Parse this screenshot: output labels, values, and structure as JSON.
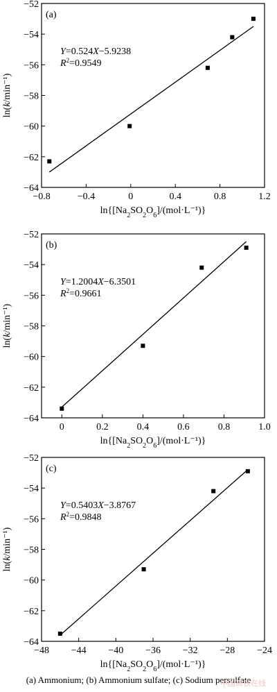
{
  "chart_data": [
    {
      "type": "scatter",
      "panel_label": "(a)",
      "y_label": "ln(k/min⁻¹)",
      "x_label": "ln{[Na2SO2O6]/(mol·L⁻¹)}",
      "equation": "Y=0.524X−5.9238",
      "r_squared": "R2=0.9549",
      "xlim": [
        -0.8,
        1.2
      ],
      "ylim": [
        -64,
        -52
      ],
      "x_ticks": [
        "-0.8",
        "-0.4",
        "0",
        "0.4",
        "0.8",
        "1.2"
      ],
      "y_ticks": [
        "-52",
        "-54",
        "-56",
        "-58",
        "-60",
        "-62",
        "-64"
      ],
      "x_tick_values": [
        -0.8,
        -0.4,
        0,
        0.4,
        0.8,
        1.2
      ],
      "y_tick_values": [
        -52,
        -54,
        -56,
        -58,
        -60,
        -62,
        -64
      ],
      "points": [
        {
          "x": -0.73,
          "y": -62.3
        },
        {
          "x": -0.01,
          "y": -60.0
        },
        {
          "x": 0.69,
          "y": -56.2
        },
        {
          "x": 0.91,
          "y": -54.2
        },
        {
          "x": 1.1,
          "y": -53.0
        }
      ],
      "fit_line": [
        {
          "x": -0.73,
          "y": -63.0
        },
        {
          "x": 1.1,
          "y": -53.5
        }
      ],
      "grid": false,
      "legend": "none"
    },
    {
      "type": "scatter",
      "panel_label": "(b)",
      "y_label": "ln(k/min⁻¹)",
      "x_label": "ln{[Na2SO2O6]/(mol·L⁻¹)}",
      "equation": "Y=1.2004X−6.3501",
      "r_squared": "R2=0.9661",
      "xlim": [
        -0.1,
        1.0
      ],
      "ylim": [
        -64,
        -52
      ],
      "x_ticks": [
        "0",
        "0.2",
        "0.4",
        "0.6",
        "0.8",
        "1.0"
      ],
      "y_ticks": [
        "-52",
        "-54",
        "-56",
        "-58",
        "-60",
        "-62",
        "-64"
      ],
      "x_tick_values": [
        0,
        0.2,
        0.4,
        0.6,
        0.8,
        1.0
      ],
      "y_tick_values": [
        -52,
        -54,
        -56,
        -58,
        -60,
        -62,
        -64
      ],
      "points": [
        {
          "x": 0.0,
          "y": -63.4
        },
        {
          "x": 0.4,
          "y": -59.3
        },
        {
          "x": 0.69,
          "y": -54.2
        },
        {
          "x": 0.91,
          "y": -52.9
        }
      ],
      "fit_line": [
        {
          "x": 0.0,
          "y": -63.3
        },
        {
          "x": 0.91,
          "y": -52.5
        }
      ],
      "grid": false,
      "legend": "none"
    },
    {
      "type": "scatter",
      "panel_label": "(c)",
      "y_label": "ln(k/min⁻¹)",
      "x_label": "ln{[Na2SO2O6]/(mol·L⁻¹)}",
      "equation": "Y=0.5403X−3.8767",
      "r_squared": "R2=0.9848",
      "xlim": [
        -48,
        -24
      ],
      "ylim": [
        -64,
        -52
      ],
      "x_ticks": [
        "-48",
        "-44",
        "-40",
        "-36",
        "-32",
        "-28",
        "-24"
      ],
      "y_ticks": [
        "-52",
        "-54",
        "-56",
        "-58",
        "-60",
        "-62",
        "-64"
      ],
      "x_tick_values": [
        -48,
        -44,
        -40,
        -36,
        -32,
        -28,
        -24
      ],
      "y_tick_values": [
        -52,
        -54,
        -56,
        -58,
        -60,
        -62,
        -64
      ],
      "points": [
        {
          "x": -46.0,
          "y": -63.5
        },
        {
          "x": -37.0,
          "y": -59.3
        },
        {
          "x": -29.5,
          "y": -54.2
        },
        {
          "x": -25.8,
          "y": -52.9
        }
      ],
      "fit_line": [
        {
          "x": -46.0,
          "y": -63.6
        },
        {
          "x": -25.8,
          "y": -52.8
        }
      ],
      "grid": false,
      "legend": "none"
    }
  ],
  "caption": "(a) Ammonium; (b) Ammonium sulfate; (c) Sodium persulfate",
  "watermark": "中国高铁在线",
  "colors": {
    "marker": "#000000",
    "axis": "#000000",
    "background": "#ffffff"
  }
}
